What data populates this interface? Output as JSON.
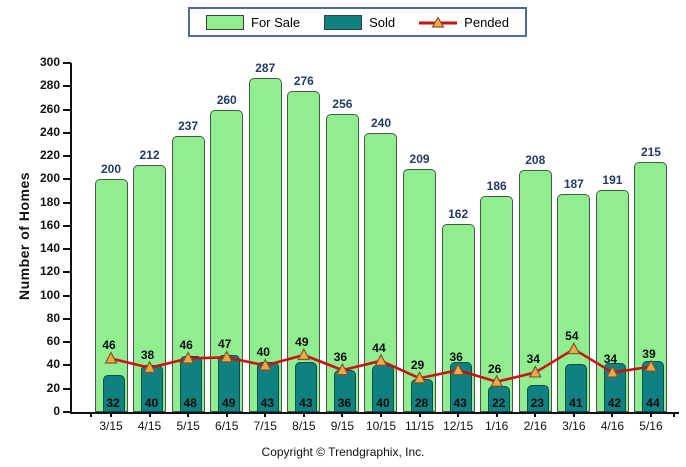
{
  "chart_data": {
    "type": "bar",
    "categories": [
      "3/15",
      "4/15",
      "5/15",
      "6/15",
      "7/15",
      "8/15",
      "9/15",
      "10/15",
      "11/15",
      "12/15",
      "1/16",
      "2/16",
      "3/16",
      "4/16",
      "5/16"
    ],
    "series": [
      {
        "name": "For Sale",
        "type": "bar",
        "color": "#90EE90",
        "border_color": "#4a554a",
        "values": [
          200,
          212,
          237,
          260,
          287,
          276,
          256,
          240,
          209,
          162,
          186,
          208,
          187,
          191,
          215
        ]
      },
      {
        "name": "Sold",
        "type": "bar",
        "color": "#108080",
        "border_color": "#0a4c50",
        "values": [
          32,
          40,
          48,
          49,
          43,
          43,
          36,
          40,
          28,
          43,
          22,
          23,
          41,
          42,
          44
        ]
      },
      {
        "name": "Pended",
        "type": "line",
        "color": "#CC1111",
        "marker": "triangle",
        "marker_color": "#F5A54A",
        "marker_border_color": "#7a5a2a",
        "values": [
          46,
          38,
          46,
          47,
          40,
          49,
          36,
          44,
          29,
          36,
          26,
          34,
          54,
          34,
          39
        ]
      }
    ],
    "title": "",
    "xlabel": "",
    "ylabel": "Number of Homes",
    "ylim": [
      0,
      300
    ],
    "ytick_step": 20,
    "grid": false,
    "legend_position": "top-center",
    "value_label_colors": {
      "for_sale": "#243a67",
      "sold": "#0b0b0b",
      "pended": "#0b0b0b"
    }
  },
  "footer": {
    "copyright": "Copyright © Trendgraphix, Inc."
  }
}
